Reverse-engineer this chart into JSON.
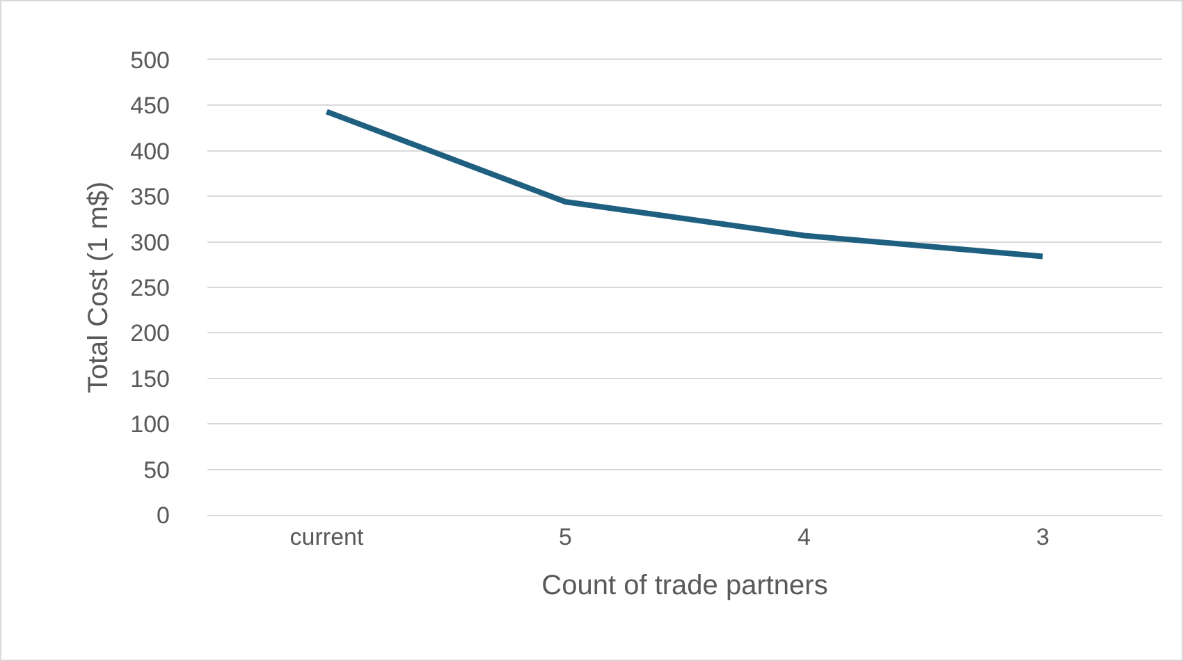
{
  "chart_data": {
    "type": "line",
    "xlabel": "Count of trade partners",
    "ylabel": "Total Cost (1 m$)",
    "categories": [
      "current",
      "5",
      "4",
      "3"
    ],
    "series": [
      {
        "color": "#1f5f80",
        "values": [
          443,
          344,
          307,
          284
        ]
      }
    ],
    "ylim": [
      0,
      500
    ],
    "yticks": [
      0,
      50,
      100,
      150,
      200,
      250,
      300,
      350,
      400,
      450,
      500
    ],
    "grid": "y",
    "marker": "none",
    "line_style": "solid"
  }
}
